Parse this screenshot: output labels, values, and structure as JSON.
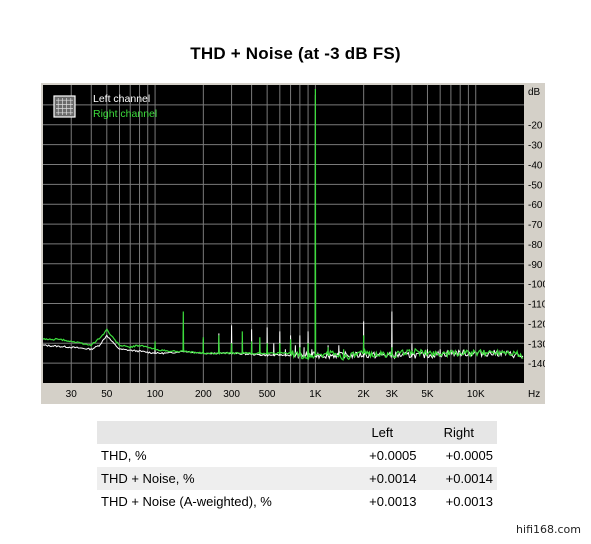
{
  "chart_data": {
    "type": "line",
    "title": "THD + Noise (at -3 dB FS)",
    "xlabel": "Hz",
    "ylabel": "dB",
    "x_scale": "log",
    "xlim": [
      20,
      20000
    ],
    "ylim": [
      -150,
      0
    ],
    "grid": true,
    "legend_position": "top-left",
    "background": "#000000",
    "grid_color": "#7a7a7a",
    "x_ticks": [
      {
        "value": 30,
        "label": "30"
      },
      {
        "value": 50,
        "label": "50"
      },
      {
        "value": 100,
        "label": "100"
      },
      {
        "value": 200,
        "label": "200"
      },
      {
        "value": 300,
        "label": "300"
      },
      {
        "value": 500,
        "label": "500"
      },
      {
        "value": 1000,
        "label": "1K"
      },
      {
        "value": 2000,
        "label": "2K"
      },
      {
        "value": 3000,
        "label": "3K"
      },
      {
        "value": 5000,
        "label": "5K"
      },
      {
        "value": 10000,
        "label": "10K"
      }
    ],
    "y_ticks": [
      {
        "value": -20,
        "label": "-20"
      },
      {
        "value": -30,
        "label": "-30"
      },
      {
        "value": -40,
        "label": "-40"
      },
      {
        "value": -50,
        "label": "-50"
      },
      {
        "value": -60,
        "label": "-60"
      },
      {
        "value": -70,
        "label": "-70"
      },
      {
        "value": -80,
        "label": "-80"
      },
      {
        "value": -90,
        "label": "-90"
      },
      {
        "value": -100,
        "label": "-100"
      },
      {
        "value": -110,
        "label": "-110"
      },
      {
        "value": -120,
        "label": "-120"
      },
      {
        "value": -130,
        "label": "-130"
      },
      {
        "value": -140,
        "label": "-140"
      }
    ],
    "series": [
      {
        "name": "Left channel",
        "color": "#ffffff",
        "floor": [
          [
            20,
            -131
          ],
          [
            30,
            -132
          ],
          [
            40,
            -133
          ],
          [
            45,
            -131
          ],
          [
            50,
            -126
          ],
          [
            55,
            -130
          ],
          [
            60,
            -133
          ],
          [
            80,
            -134
          ],
          [
            100,
            -135
          ],
          [
            120,
            -135
          ],
          [
            150,
            -134
          ],
          [
            200,
            -135
          ],
          [
            300,
            -135
          ],
          [
            500,
            -136
          ],
          [
            800,
            -136
          ],
          [
            1000,
            -136
          ],
          [
            1500,
            -136
          ],
          [
            2000,
            -136
          ],
          [
            3000,
            -136
          ],
          [
            5000,
            -136
          ],
          [
            7000,
            -135
          ],
          [
            10000,
            -135
          ],
          [
            15000,
            -135
          ],
          [
            18000,
            -136
          ],
          [
            20000,
            -137
          ]
        ],
        "peaks": [
          [
            50,
            -126
          ],
          [
            100,
            -131
          ],
          [
            150,
            -124
          ],
          [
            200,
            -128
          ],
          [
            250,
            -125
          ],
          [
            300,
            -121
          ],
          [
            350,
            -129
          ],
          [
            400,
            -123
          ],
          [
            450,
            -131
          ],
          [
            500,
            -122
          ],
          [
            550,
            -130
          ],
          [
            600,
            -124
          ],
          [
            650,
            -133
          ],
          [
            700,
            -126
          ],
          [
            750,
            -131
          ],
          [
            800,
            -126
          ],
          [
            850,
            -132
          ],
          [
            900,
            -124
          ],
          [
            950,
            -133
          ],
          [
            1000,
            -5
          ],
          [
            1200,
            -131
          ],
          [
            1400,
            -131
          ],
          [
            2000,
            -119
          ],
          [
            3000,
            -114
          ],
          [
            4000,
            -130
          ],
          [
            5000,
            -133
          ],
          [
            6000,
            -133
          ]
        ]
      },
      {
        "name": "Right channel",
        "color": "#3cdc3c",
        "floor": [
          [
            20,
            -128
          ],
          [
            25,
            -128
          ],
          [
            30,
            -129
          ],
          [
            40,
            -131
          ],
          [
            47,
            -126
          ],
          [
            50,
            -123
          ],
          [
            53,
            -126
          ],
          [
            60,
            -131
          ],
          [
            70,
            -132
          ],
          [
            80,
            -131
          ],
          [
            100,
            -133
          ],
          [
            120,
            -134
          ],
          [
            140,
            -134
          ],
          [
            200,
            -135
          ],
          [
            300,
            -135
          ],
          [
            500,
            -135
          ],
          [
            700,
            -135
          ],
          [
            900,
            -137
          ],
          [
            1000,
            -136
          ],
          [
            1300,
            -135
          ],
          [
            1500,
            -137
          ],
          [
            2000,
            -135
          ],
          [
            3000,
            -136
          ],
          [
            4000,
            -134
          ],
          [
            5000,
            -135
          ],
          [
            7000,
            -135
          ],
          [
            10000,
            -135
          ],
          [
            15000,
            -134
          ],
          [
            18000,
            -135
          ],
          [
            20000,
            -138
          ]
        ],
        "peaks": [
          [
            50,
            -123
          ],
          [
            100,
            -129
          ],
          [
            150,
            -114
          ],
          [
            200,
            -127
          ],
          [
            250,
            -126
          ],
          [
            300,
            -130
          ],
          [
            350,
            -124
          ],
          [
            400,
            -129
          ],
          [
            450,
            -127
          ],
          [
            500,
            -130
          ],
          [
            600,
            -130
          ],
          [
            700,
            -128
          ],
          [
            800,
            -132
          ],
          [
            900,
            -130
          ],
          [
            1000,
            -2
          ],
          [
            1200,
            -132
          ],
          [
            1500,
            -133
          ],
          [
            2000,
            -126
          ],
          [
            3000,
            -132
          ]
        ]
      }
    ]
  },
  "table": {
    "headers": [
      "",
      "Left",
      "Right"
    ],
    "rows": [
      {
        "label": "THD, %",
        "left": "+0.0005",
        "right": "+0.0005"
      },
      {
        "label": "THD + Noise, %",
        "left": "+0.0014",
        "right": "+0.0014"
      },
      {
        "label": "THD + Noise (A-weighted), %",
        "left": "+0.0013",
        "right": "+0.0013"
      }
    ]
  },
  "watermark": "hifi168.com"
}
